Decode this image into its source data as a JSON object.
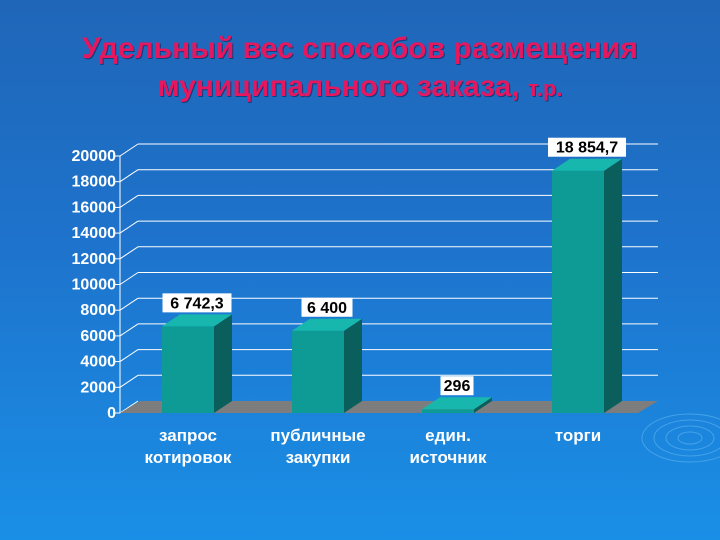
{
  "title_line1": "Удельный вес способов размещения",
  "title_line2": "муниципального заказа,",
  "title_unit": "т.р.",
  "colors": {
    "bar_front": "#0e9b95",
    "bar_side": "#0a5f5c",
    "bar_top": "#18b7ad",
    "floor": "#7d7d7d",
    "title": "#e4175f",
    "grid": "#ffffff"
  },
  "chart_data": {
    "type": "bar",
    "categories": [
      [
        "запрос",
        "котировок"
      ],
      [
        "публичные",
        "закупки"
      ],
      [
        "един.",
        "источник"
      ],
      [
        "торги"
      ]
    ],
    "values": [
      6742.3,
      6400,
      296,
      18854.7
    ],
    "data_labels": [
      "6 742,3",
      "6 400",
      "296",
      "18 854,7"
    ],
    "y_ticks": [
      "20000",
      "18000",
      "16000",
      "14000",
      "12000",
      "10000",
      "8000",
      "6000",
      "4000",
      "2000",
      "0"
    ],
    "ylim": [
      0,
      20000
    ],
    "grid": true,
    "legend": "none"
  }
}
